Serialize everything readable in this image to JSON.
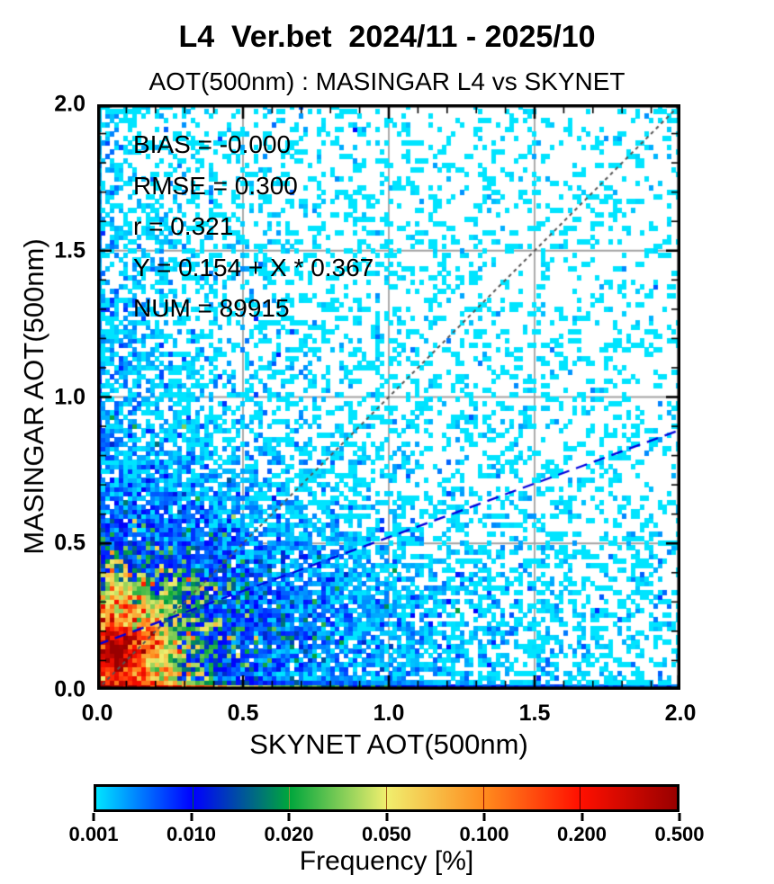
{
  "chart_data": {
    "type": "heatmap",
    "title": "L4  Ver.bet  2024/11 - 2025/10",
    "subtitle": "AOT(500nm) : MASINGAR L4 vs SKYNET",
    "xlabel": "SKYNET AOT(500nm)",
    "ylabel": "MASINGAR AOT(500nm)",
    "xlim": [
      0.0,
      2.0
    ],
    "ylim": [
      0.0,
      2.0
    ],
    "xticks": [
      "0.0",
      "0.5",
      "1.0",
      "1.5",
      "2.0"
    ],
    "yticks": [
      "0.0",
      "0.5",
      "1.0",
      "1.5",
      "2.0"
    ],
    "minor_tick_step": 0.1,
    "grid": {
      "lines": [
        0.5,
        1.0,
        1.5
      ],
      "color": "#a3a3a3"
    },
    "stats_lines": [
      "BIAS = -0.000",
      "RMSE = 0.300",
      "r = 0.321",
      "Y = 0.154 + X * 0.367",
      "NUM = 89915"
    ],
    "stats": {
      "bias": "-0.000",
      "rmse": "0.300",
      "r": "0.321",
      "fit_intercept": 0.154,
      "fit_slope": 0.367,
      "num": 89915
    },
    "identity_line": {
      "color": "#555555",
      "dash": [
        4,
        4
      ],
      "width": 2,
      "from": [
        0,
        0
      ],
      "to": [
        2,
        2
      ]
    },
    "regression_line": {
      "color": "#0000dd",
      "dash": [
        13,
        8
      ],
      "width": 2.3,
      "intercept": 0.154,
      "slope": 0.367
    },
    "colorbar": {
      "title": "Frequency [%]",
      "tick_labels": [
        "0.001",
        "0.010",
        "0.020",
        "0.050",
        "0.100",
        "0.200",
        "0.500"
      ],
      "tick_values": [
        0.001,
        0.01,
        0.02,
        0.05,
        0.1,
        0.2,
        0.5
      ],
      "stop_colors": [
        "#00e4ff",
        "#0000ff",
        "#00a63c",
        "#f0ee6e",
        "#ff8c1e",
        "#ff1000",
        "#990000"
      ]
    },
    "density_model": {
      "blobs": [
        {
          "cx": 0.07,
          "cy": 0.13,
          "sx": 1.0,
          "sy": 1.15,
          "scale": 0.068,
          "amp": 0.55
        },
        {
          "cx": 0.25,
          "cy": 0.28,
          "sx": 1.0,
          "sy": 0.9,
          "scale": 0.16,
          "amp": 0.01
        },
        {
          "cx": 0.45,
          "cy": 0.2,
          "sx": 1.6,
          "sy": 0.55,
          "scale": 0.22,
          "amp": 0.004
        }
      ],
      "background": {
        "terms": [
          {
            "amp": 0.0008,
            "lx": 1.2,
            "ly": 0.9
          },
          {
            "amp": 0.0015,
            "lx": 0.25,
            "ly": 1.2
          }
        ],
        "floor": 0.00012
      },
      "bottom_row": {
        "terms": [
          {
            "amp": 0.6,
            "lx": 0.16
          },
          {
            "amp": 0.05,
            "lx": 0.5
          },
          {
            "amp": 0.004,
            "lx": 2.0
          }
        ]
      },
      "second_row": {
        "terms": [
          {
            "amp": 0.15,
            "lx": 0.14
          },
          {
            "amp": 0.01,
            "lx": 0.5
          }
        ]
      },
      "left_col": {
        "terms": [
          {
            "amp": 0.08,
            "ly": 0.3
          },
          {
            "amp": 0.003,
            "ly": 1.2
          }
        ]
      }
    },
    "render": {
      "seed": 20241110,
      "bins": 130,
      "noise_sigma": 0.95,
      "core_noise_sigma": 0.55,
      "strip_noise_sigma": 0.35,
      "sparse_gain": 0.65
    }
  }
}
